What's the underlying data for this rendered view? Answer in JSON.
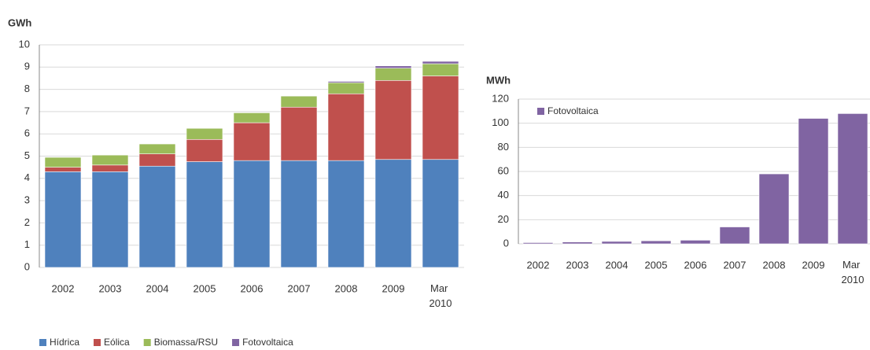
{
  "chart_data": [
    {
      "type": "bar",
      "stacked": true,
      "y_label": "GWh",
      "categories": [
        "2002",
        "2003",
        "2004",
        "2005",
        "2006",
        "2007",
        "2008",
        "2009",
        "Mar 2010"
      ],
      "series": [
        {
          "name": "Hídrica",
          "color": "#4f81bd",
          "values": [
            4.3,
            4.3,
            4.55,
            4.75,
            4.8,
            4.8,
            4.8,
            4.85,
            4.85
          ]
        },
        {
          "name": "Eólica",
          "color": "#c0504d",
          "values": [
            0.2,
            0.3,
            0.55,
            1.0,
            1.7,
            2.4,
            3.0,
            3.55,
            3.75
          ]
        },
        {
          "name": "Biomassa/RSU",
          "color": "#9bbb59",
          "values": [
            0.45,
            0.45,
            0.45,
            0.5,
            0.45,
            0.5,
            0.5,
            0.55,
            0.55
          ]
        },
        {
          "name": "Fotovoltaica",
          "color": "#8064a2",
          "values": [
            0.001,
            0.0015,
            0.002,
            0.0025,
            0.003,
            0.014,
            0.058,
            0.104,
            0.108
          ]
        }
      ],
      "ylim": [
        0,
        10
      ],
      "yticks": [
        0,
        1,
        2,
        3,
        4,
        5,
        6,
        7,
        8,
        9,
        10
      ],
      "grid": true,
      "legend": "bottom"
    },
    {
      "type": "bar",
      "y_label": "MWh",
      "categories": [
        "2002",
        "2003",
        "2004",
        "2005",
        "2006",
        "2007",
        "2008",
        "2009",
        "Mar 2010"
      ],
      "series": [
        {
          "name": "Fotovoltaica",
          "color": "#8064a2",
          "values": [
            1,
            1.5,
            2,
            2.5,
            3,
            14,
            58,
            104,
            108
          ]
        }
      ],
      "ylim": [
        0,
        120
      ],
      "yticks": [
        0,
        20,
        40,
        60,
        80,
        100,
        120
      ],
      "grid": true,
      "legend": "top-left"
    }
  ]
}
